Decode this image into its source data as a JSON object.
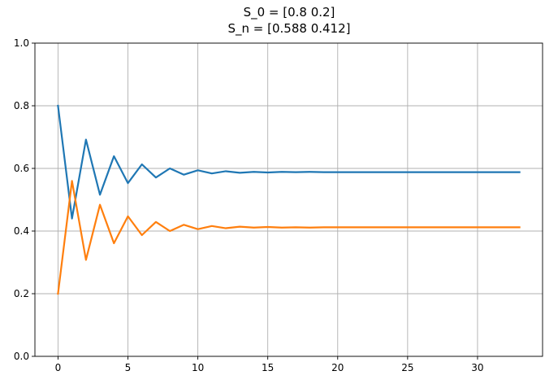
{
  "chart_data": {
    "type": "line",
    "title_lines": [
      "S_0 = [0.8 0.2]",
      "S_n = [0.588 0.412]"
    ],
    "xlabel": "",
    "ylabel": "",
    "xlim": [
      -1.65,
      34.65
    ],
    "ylim": [
      0,
      1
    ],
    "xticks": [
      0,
      5,
      10,
      15,
      20,
      25,
      30
    ],
    "yticks": [
      0.0,
      0.2,
      0.4,
      0.6,
      0.8,
      1.0
    ],
    "ytick_labels": [
      "0.0",
      "0.2",
      "0.4",
      "0.6",
      "0.8",
      "1.0"
    ],
    "grid": true,
    "x": [
      0,
      1,
      2,
      3,
      4,
      5,
      6,
      7,
      8,
      9,
      10,
      11,
      12,
      13,
      14,
      15,
      16,
      17,
      18,
      19,
      20,
      21,
      22,
      23,
      24,
      25,
      26,
      27,
      28,
      29,
      30,
      31,
      32,
      33
    ],
    "series": [
      {
        "color": "#1f77b4",
        "values": [
          0.8,
          0.44,
          0.692,
          0.516,
          0.639,
          0.553,
          0.613,
          0.571,
          0.6,
          0.58,
          0.594,
          0.584,
          0.591,
          0.586,
          0.589,
          0.587,
          0.589,
          0.588,
          0.589,
          0.588,
          0.588,
          0.588,
          0.588,
          0.588,
          0.588,
          0.588,
          0.588,
          0.588,
          0.588,
          0.588,
          0.588,
          0.588,
          0.588,
          0.588
        ]
      },
      {
        "color": "#ff7f0e",
        "values": [
          0.2,
          0.56,
          0.308,
          0.484,
          0.361,
          0.447,
          0.387,
          0.429,
          0.4,
          0.42,
          0.406,
          0.416,
          0.409,
          0.414,
          0.411,
          0.413,
          0.411,
          0.412,
          0.411,
          0.412,
          0.412,
          0.412,
          0.412,
          0.412,
          0.412,
          0.412,
          0.412,
          0.412,
          0.412,
          0.412,
          0.412,
          0.412,
          0.412,
          0.412
        ]
      }
    ]
  }
}
